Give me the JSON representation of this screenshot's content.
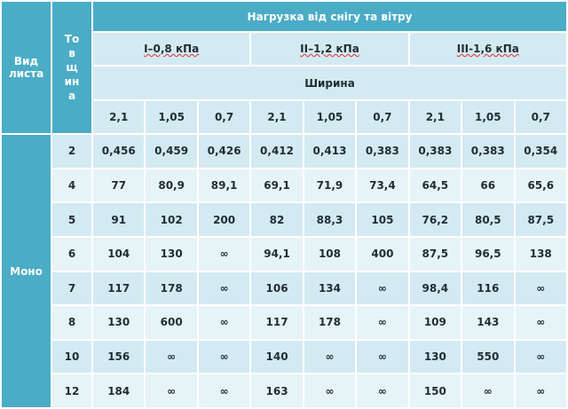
{
  "header": {
    "title": "Нагрузка від снігу та вітру",
    "sheet_type": "Вид листа",
    "thickness": "Товщина",
    "loads": [
      "I–0,8 кПа",
      "II–1,2 кПа",
      "III-1,6 кПа"
    ],
    "width_label": "Ширина",
    "widths": [
      "2,1",
      "1,05",
      "0,7",
      "2,1",
      "1,05",
      "0,7",
      "2,1",
      "1,05",
      "0,7"
    ]
  },
  "table": {
    "group": "Моно",
    "rows": [
      [
        "2",
        "0,456",
        "0,459",
        "0,426",
        "0,412",
        "0,413",
        "0,383",
        "0,383",
        "0,383",
        "0,354"
      ],
      [
        "4",
        "77",
        "80,9",
        "89,1",
        "69,1",
        "71,9",
        "73,4",
        "64,5",
        "66",
        "65,6"
      ],
      [
        "5",
        "91",
        "102",
        "200",
        "82",
        "88,3",
        "105",
        "76,2",
        "80,5",
        "87,5"
      ],
      [
        "6",
        "104",
        "130",
        "∞",
        "94,1",
        "108",
        "400",
        "87,5",
        "96,5",
        "138"
      ],
      [
        "7",
        "117",
        "178",
        "∞",
        "106",
        "134",
        "∞",
        "98,4",
        "116",
        "∞"
      ],
      [
        "8",
        "130",
        "600",
        "∞",
        "117",
        "178",
        "∞",
        "109",
        "143",
        "∞"
      ],
      [
        "10",
        "156",
        "∞",
        "∞",
        "140",
        "∞",
        "∞",
        "130",
        "550",
        "∞"
      ],
      [
        "12",
        "184",
        "∞",
        "∞",
        "163",
        "∞",
        "∞",
        "150",
        "∞",
        "∞"
      ]
    ]
  }
}
